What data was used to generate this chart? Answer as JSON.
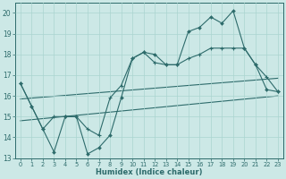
{
  "xlabel": "Humidex (Indice chaleur)",
  "bg_color": "#cce8e6",
  "line_color": "#2d6b6b",
  "grid_color": "#aad4d0",
  "xlim": [
    -0.5,
    23.5
  ],
  "ylim": [
    13.0,
    20.5
  ],
  "yticks": [
    13,
    14,
    15,
    16,
    17,
    18,
    19,
    20
  ],
  "xticks": [
    0,
    1,
    2,
    3,
    4,
    5,
    6,
    7,
    8,
    9,
    10,
    11,
    12,
    13,
    14,
    15,
    16,
    17,
    18,
    19,
    20,
    21,
    22,
    23
  ],
  "line_main_x": [
    0,
    1,
    2,
    3,
    4,
    5,
    6,
    7,
    8,
    9,
    10,
    11,
    12,
    13,
    14,
    15,
    16,
    17,
    18,
    19,
    20,
    21,
    22,
    23
  ],
  "line_main_y": [
    16.6,
    15.5,
    14.4,
    13.3,
    15.0,
    15.0,
    13.2,
    13.5,
    14.1,
    15.9,
    17.8,
    18.1,
    18.0,
    17.5,
    17.5,
    19.1,
    19.3,
    19.8,
    19.5,
    20.1,
    18.3,
    17.5,
    16.3,
    16.2
  ],
  "line_upper_x": [
    0,
    1,
    2,
    3,
    4,
    5,
    6,
    7,
    8,
    9,
    10,
    11,
    12,
    13,
    14,
    15,
    16,
    17,
    18,
    19,
    20,
    21,
    22,
    23
  ],
  "line_upper_y": [
    16.6,
    15.5,
    14.4,
    15.0,
    15.0,
    15.0,
    14.4,
    14.1,
    15.9,
    16.5,
    17.8,
    18.1,
    17.6,
    17.5,
    17.5,
    17.8,
    18.0,
    18.3,
    18.3,
    18.3,
    18.3,
    17.5,
    16.9,
    16.2
  ],
  "line_trend1_x": [
    0,
    23
  ],
  "line_trend1_y": [
    14.8,
    16.0
  ],
  "line_trend2_x": [
    0,
    23
  ],
  "line_trend2_y": [
    15.85,
    16.85
  ]
}
